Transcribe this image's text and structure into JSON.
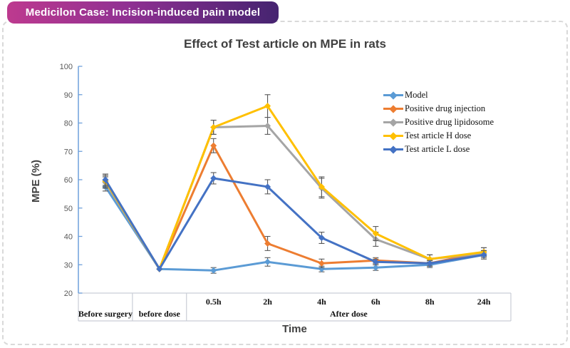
{
  "header": {
    "title": "Medicilon Case: Incision-induced pain model",
    "badge_colors": [
      "#bd3a8f",
      "#8f3092",
      "#452470"
    ]
  },
  "chart_data": {
    "type": "line",
    "title": "Effect of Test article on MPE in rats",
    "xlabel": "Time",
    "ylabel": "MPE (%)",
    "ylim": [
      20,
      100
    ],
    "y_ticks": [
      20,
      30,
      40,
      50,
      60,
      70,
      80,
      90,
      100
    ],
    "grid": false,
    "legend_position": "inside-right",
    "categories": [
      "Before surgery",
      "before dose",
      "0.5h",
      "2h",
      "4h",
      "6h",
      "8h",
      "24h"
    ],
    "time_label_indices": [
      2,
      3,
      4,
      5,
      6,
      7
    ],
    "x_groups": [
      {
        "label": "Before surgery",
        "span": [
          0,
          0
        ]
      },
      {
        "label": "before dose",
        "span": [
          1,
          1
        ]
      },
      {
        "label": "After dose",
        "span": [
          2,
          7
        ]
      }
    ],
    "axis_colors": {
      "y_axis": "#6fa0db",
      "table": "#c9cdd6",
      "tick_text": "#595959",
      "error_bar": "#595959"
    },
    "series": [
      {
        "name": "Model",
        "color": "#5b9bd5",
        "values": [
          57.5,
          28.5,
          28,
          31,
          28.5,
          29,
          30,
          33.5
        ],
        "errors": [
          1.5,
          0,
          1,
          1.5,
          1,
          1,
          1,
          1
        ]
      },
      {
        "name": "Positive drug injection",
        "color": "#ed7d31",
        "values": [
          59.5,
          28.5,
          72,
          37.5,
          30.5,
          31.5,
          30.5,
          34.5
        ],
        "errors": [
          2.5,
          0,
          2.5,
          2.5,
          1.5,
          1,
          1,
          1.5
        ]
      },
      {
        "name": "Positive drug lipidosome",
        "color": "#a5a5a5",
        "values": [
          59,
          28.5,
          78.5,
          79,
          57,
          39,
          32,
          34
        ],
        "errors": [
          2,
          0,
          2.5,
          3,
          3.5,
          2.5,
          1.5,
          1
        ]
      },
      {
        "name": "Test article H dose",
        "color": "#ffc000",
        "values": [
          59.5,
          28.5,
          78.5,
          86,
          57.5,
          41,
          32,
          34.5
        ],
        "errors": [
          2,
          0,
          2.5,
          4,
          3.5,
          2.5,
          1.5,
          1.5
        ]
      },
      {
        "name": "Test article L dose",
        "color": "#4472c4",
        "values": [
          60,
          28.5,
          60.5,
          57.5,
          39.5,
          31,
          30.5,
          33.5
        ],
        "errors": [
          2,
          0,
          2,
          2.5,
          2,
          1,
          1,
          1.5
        ]
      }
    ]
  }
}
